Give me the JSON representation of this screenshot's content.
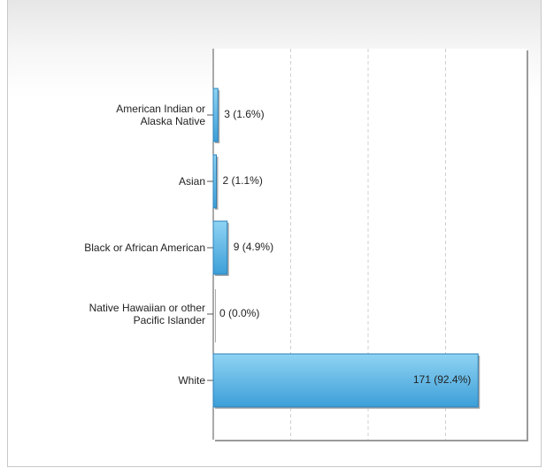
{
  "chart_data": {
    "type": "bar",
    "orientation": "horizontal",
    "categories": [
      "American Indian or\nAlaska Native",
      "Asian",
      "Black or African American",
      "Native Hawaiian or other\nPacific Islander",
      "White"
    ],
    "values": [
      3,
      2,
      9,
      0,
      171
    ],
    "value_labels": [
      "3 (1.6%)",
      "2 (1.1%)",
      "9 (4.9%)",
      "0 (0.0%)",
      "171 (92.4%)"
    ],
    "color": "#5bb5e4",
    "xlim": [
      0,
      200
    ],
    "xticks": [
      0,
      50,
      100,
      150,
      200
    ],
    "grid": true
  }
}
